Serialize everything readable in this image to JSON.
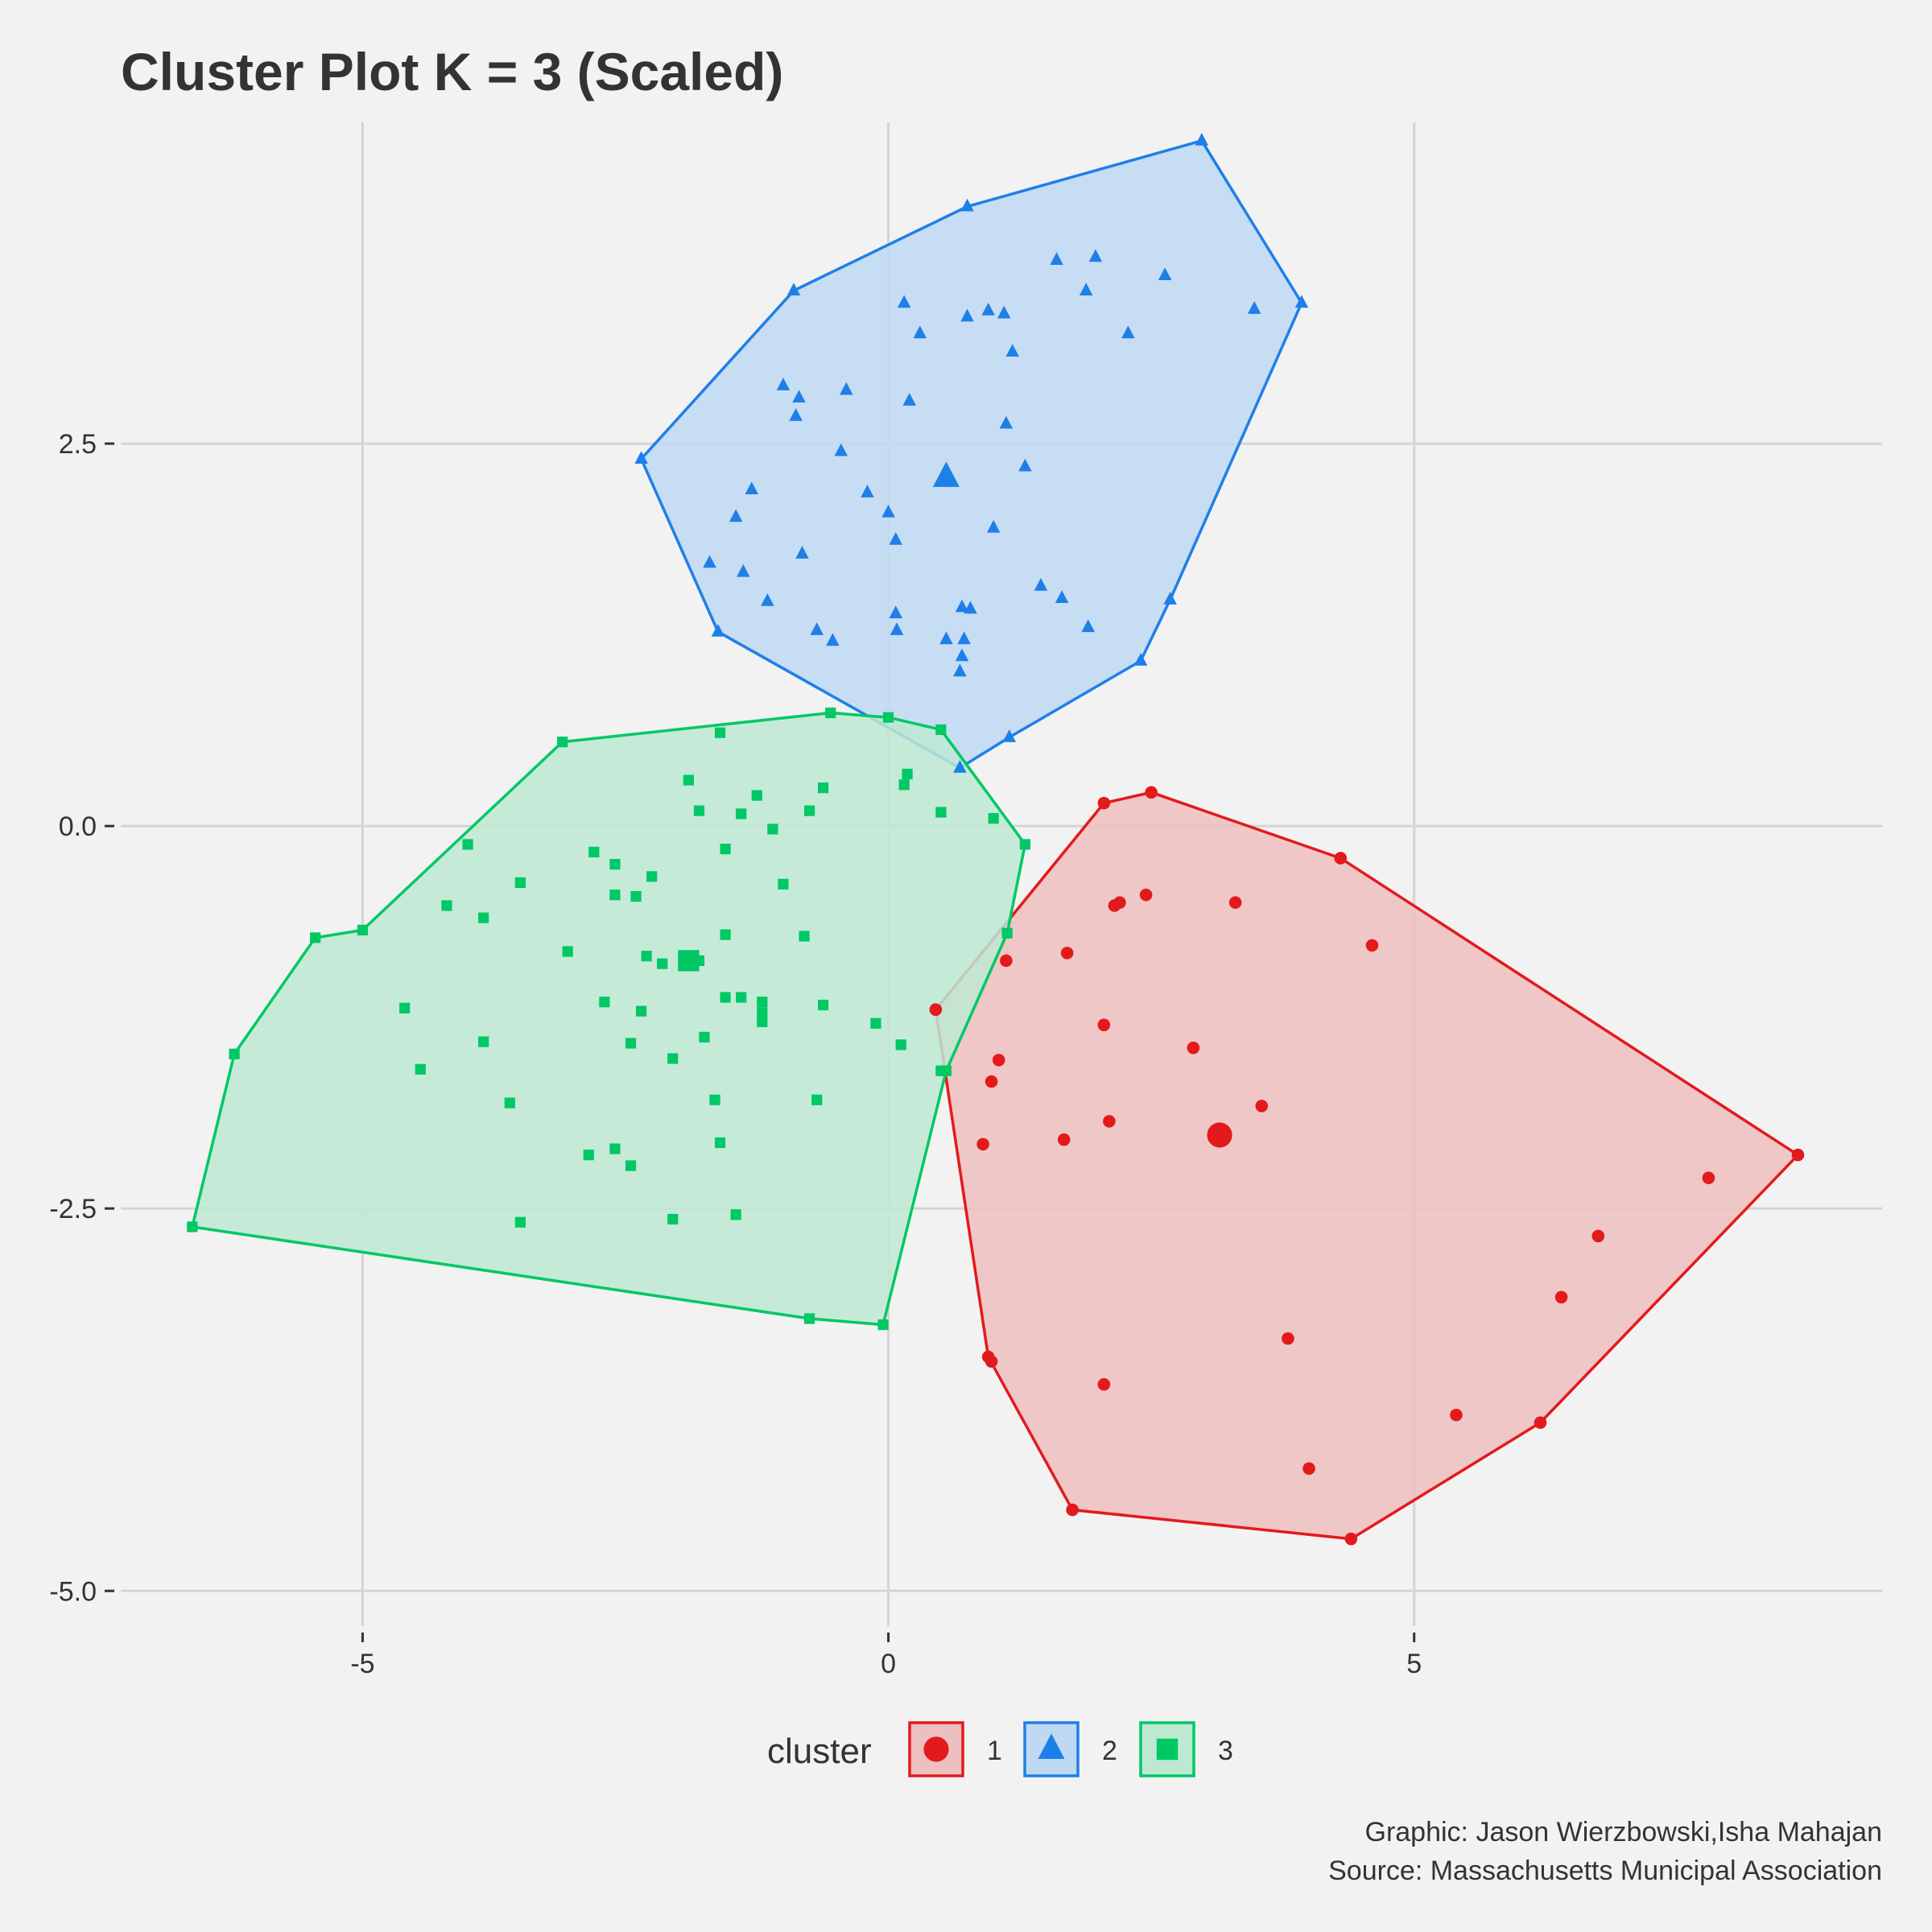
{
  "chart_data": {
    "type": "scatter",
    "title": "Cluster Plot K = 3 (Scaled)",
    "xlabel": "",
    "ylabel": "",
    "xlim": [
      -7.3,
      9.45
    ],
    "ylim": [
      -5.23,
      4.6
    ],
    "x_ticks": [
      -5,
      0,
      5
    ],
    "x_tick_labels": [
      "-5",
      "0",
      "5"
    ],
    "y_ticks": [
      2.5,
      0,
      -2.5,
      -5
    ],
    "y_tick_labels": [
      "2.5",
      "0.0",
      "-2.5",
      "-5.0"
    ],
    "grid": true,
    "legend": {
      "title": "cluster",
      "position": "bottom"
    },
    "caption": [
      "Graphic: Jason Wierzbowski,Isha Mahajan",
      "Source: Massachusetts Municipal Association"
    ],
    "series": [
      {
        "name": "1",
        "color": "#e31a1c",
        "fill": "#eebfc0",
        "shape": "circle",
        "center": [
          3.15,
          -2.02
        ],
        "hull": [
          [
            0.45,
            -1.2
          ],
          [
            2.05,
            0.15
          ],
          [
            2.5,
            0.22
          ],
          [
            4.3,
            -0.21
          ],
          [
            8.65,
            -2.15
          ],
          [
            6.2,
            -3.9
          ],
          [
            4.4,
            -4.66
          ],
          [
            1.75,
            -4.47
          ],
          [
            0.95,
            -3.47
          ]
        ],
        "points": [
          [
            2.15,
            -0.52
          ],
          [
            2.2,
            -0.5
          ],
          [
            2.45,
            -0.45
          ],
          [
            3.3,
            -0.5
          ],
          [
            4.6,
            -0.78
          ],
          [
            1.7,
            -0.83
          ],
          [
            1.12,
            -0.88
          ],
          [
            2.05,
            -1.3
          ],
          [
            2.9,
            -1.45
          ],
          [
            1.05,
            -1.53
          ],
          [
            0.98,
            -1.67
          ],
          [
            3.55,
            -1.83
          ],
          [
            2.1,
            -1.93
          ],
          [
            1.67,
            -2.05
          ],
          [
            0.9,
            -2.08
          ],
          [
            7.8,
            -2.3
          ],
          [
            6.75,
            -2.68
          ],
          [
            6.4,
            -3.08
          ],
          [
            3.8,
            -3.35
          ],
          [
            2.05,
            -3.65
          ],
          [
            5.4,
            -3.85
          ],
          [
            4.0,
            -4.2
          ],
          [
            0.98,
            -3.5
          ]
        ]
      },
      {
        "name": "2",
        "color": "#1e7fe8",
        "fill": "#c0d9f3",
        "shape": "triangle",
        "center": [
          0.55,
          2.28
        ],
        "hull": [
          [
            -2.35,
            2.4
          ],
          [
            -0.9,
            3.5
          ],
          [
            0.75,
            4.05
          ],
          [
            2.98,
            4.48
          ],
          [
            3.93,
            3.42
          ],
          [
            2.68,
            1.48
          ],
          [
            2.4,
            1.08
          ],
          [
            1.15,
            0.58
          ],
          [
            0.68,
            0.38
          ],
          [
            -1.62,
            1.27
          ]
        ],
        "points": [
          [
            1.6,
            3.7
          ],
          [
            1.88,
            3.5
          ],
          [
            1.97,
            3.72
          ],
          [
            2.63,
            3.6
          ],
          [
            3.48,
            3.38
          ],
          [
            2.28,
            3.22
          ],
          [
            0.15,
            3.42
          ],
          [
            0.3,
            3.22
          ],
          [
            0.75,
            3.33
          ],
          [
            0.95,
            3.37
          ],
          [
            1.1,
            3.35
          ],
          [
            1.18,
            3.1
          ],
          [
            -1.0,
            2.88
          ],
          [
            -0.85,
            2.8
          ],
          [
            -0.4,
            2.85
          ],
          [
            0.2,
            2.78
          ],
          [
            -0.88,
            2.68
          ],
          [
            1.12,
            2.63
          ],
          [
            -0.45,
            2.45
          ],
          [
            1.3,
            2.35
          ],
          [
            -1.3,
            2.2
          ],
          [
            -0.2,
            2.18
          ],
          [
            0.0,
            2.05
          ],
          [
            -1.45,
            2.02
          ],
          [
            1.0,
            1.95
          ],
          [
            0.07,
            1.87
          ],
          [
            -0.82,
            1.78
          ],
          [
            -1.7,
            1.72
          ],
          [
            -1.38,
            1.66
          ],
          [
            1.45,
            1.57
          ],
          [
            1.65,
            1.49
          ],
          [
            -1.15,
            1.47
          ],
          [
            0.7,
            1.43
          ],
          [
            0.78,
            1.42
          ],
          [
            0.07,
            1.39
          ],
          [
            -0.68,
            1.28
          ],
          [
            0.08,
            1.28
          ],
          [
            1.9,
            1.3
          ],
          [
            0.55,
            1.22
          ],
          [
            0.72,
            1.22
          ],
          [
            -0.53,
            1.21
          ],
          [
            0.7,
            1.11
          ],
          [
            0.68,
            1.01
          ]
        ]
      },
      {
        "name": "3",
        "color": "#00c864",
        "fill": "#bde9d3",
        "shape": "square",
        "center": [
          -1.9,
          -0.88
        ],
        "hull": [
          [
            -3.1,
            0.55
          ],
          [
            -0.55,
            0.74
          ],
          [
            0.0,
            0.71
          ],
          [
            0.5,
            0.63
          ],
          [
            1.3,
            -0.12
          ],
          [
            1.13,
            -0.7
          ],
          [
            0.55,
            -1.6
          ],
          [
            -0.05,
            -3.26
          ],
          [
            -0.75,
            -3.22
          ],
          [
            -6.62,
            -2.62
          ],
          [
            -6.22,
            -1.49
          ],
          [
            -5.45,
            -0.73
          ],
          [
            -5.0,
            -0.68
          ]
        ],
        "points": [
          [
            -1.6,
            0.61
          ],
          [
            -1.9,
            0.3
          ],
          [
            -1.8,
            0.1
          ],
          [
            -1.4,
            0.08
          ],
          [
            -1.25,
            0.2
          ],
          [
            -0.62,
            0.25
          ],
          [
            -0.75,
            0.1
          ],
          [
            -1.1,
            -0.02
          ],
          [
            0.18,
            0.34
          ],
          [
            0.15,
            0.27
          ],
          [
            0.5,
            0.09
          ],
          [
            1.0,
            0.05
          ],
          [
            -4.0,
            -0.12
          ],
          [
            -2.8,
            -0.17
          ],
          [
            -2.6,
            -0.25
          ],
          [
            -1.55,
            -0.15
          ],
          [
            -3.5,
            -0.37
          ],
          [
            -2.25,
            -0.33
          ],
          [
            -2.6,
            -0.45
          ],
          [
            -2.4,
            -0.46
          ],
          [
            -4.2,
            -0.52
          ],
          [
            -3.85,
            -0.6
          ],
          [
            -1.0,
            -0.38
          ],
          [
            -1.55,
            -0.71
          ],
          [
            -0.8,
            -0.72
          ],
          [
            -3.05,
            -0.82
          ],
          [
            -2.3,
            -0.85
          ],
          [
            -2.15,
            -0.9
          ],
          [
            -1.8,
            -0.88
          ],
          [
            -4.6,
            -1.19
          ],
          [
            -2.7,
            -1.15
          ],
          [
            -2.35,
            -1.21
          ],
          [
            -1.55,
            -1.12
          ],
          [
            -1.4,
            -1.12
          ],
          [
            -1.2,
            -1.15
          ],
          [
            -1.2,
            -1.22
          ],
          [
            -1.2,
            -1.28
          ],
          [
            -0.62,
            -1.17
          ],
          [
            -3.85,
            -1.41
          ],
          [
            -2.45,
            -1.42
          ],
          [
            -1.75,
            -1.38
          ],
          [
            -0.12,
            -1.29
          ],
          [
            0.12,
            -1.43
          ],
          [
            -4.45,
            -1.59
          ],
          [
            -2.05,
            -1.52
          ],
          [
            -1.65,
            -1.79
          ],
          [
            -0.68,
            -1.79
          ],
          [
            0.5,
            -1.6
          ],
          [
            -3.6,
            -1.81
          ],
          [
            -1.6,
            -2.07
          ],
          [
            -2.6,
            -2.11
          ],
          [
            -2.85,
            -2.15
          ],
          [
            -2.45,
            -2.22
          ],
          [
            -2.05,
            -2.57
          ],
          [
            -1.45,
            -2.54
          ],
          [
            -3.5,
            -2.59
          ]
        ]
      }
    ]
  }
}
